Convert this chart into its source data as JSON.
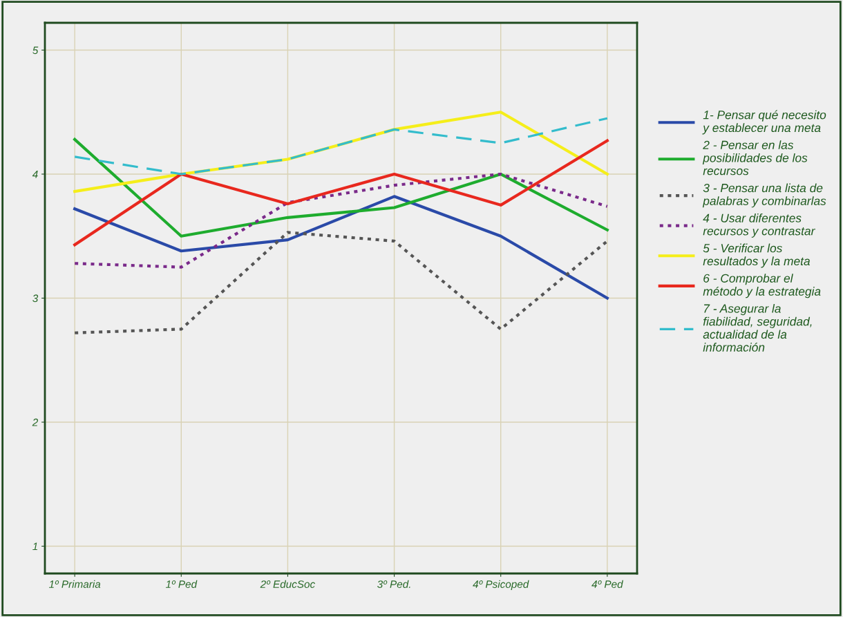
{
  "chart_data": {
    "type": "line",
    "categories": [
      "1º Primaria",
      "1º Ped",
      "2º EducSoc",
      "3º Ped.",
      "4º Psicoped",
      "4º Ped"
    ],
    "series": [
      {
        "name": "1- Pensar qué necesito\ny establecer una meta",
        "color": "#2a4aa8",
        "line_style": "solid",
        "values": [
          3.72,
          3.38,
          3.47,
          3.82,
          3.5,
          3.0
        ]
      },
      {
        "name": "2 - Pensar en las\nposibilidades de los\nrecursos",
        "color": "#1eac2e",
        "line_style": "solid",
        "values": [
          4.28,
          3.5,
          3.65,
          3.73,
          4.0,
          3.55
        ]
      },
      {
        "name": "3 - Pensar una lista de\npalabras y combinarlas",
        "color": "#555555",
        "line_style": "dotted",
        "values": [
          2.72,
          2.75,
          3.53,
          3.46,
          2.75,
          3.46
        ]
      },
      {
        "name": "4 - Usar diferentes\nrecursos y contrastar",
        "color": "#7a2a8a",
        "line_style": "dotted",
        "values": [
          3.28,
          3.25,
          3.77,
          3.91,
          4.0,
          3.74
        ]
      },
      {
        "name": "5 - Verificar los\nresultados y la meta",
        "color": "#f5ee1a",
        "line_style": "solid",
        "values": [
          3.86,
          4.0,
          4.12,
          4.36,
          4.5,
          4.0
        ]
      },
      {
        "name": "6 - Comprobar el\nmétodo y la estrategia",
        "color": "#e8281e",
        "line_style": "solid",
        "values": [
          3.43,
          4.0,
          3.76,
          4.0,
          3.75,
          4.27
        ]
      },
      {
        "name": "7 - Asegurar la\nfiabilidad, seguridad,\nactualidad de la\ninformación",
        "color": "#33bccc",
        "line_style": "dashed",
        "values": [
          4.14,
          4.0,
          4.12,
          4.36,
          4.25,
          4.45
        ]
      }
    ],
    "ylim": [
      0.78,
      5.22
    ],
    "yticks": [
      1,
      2,
      3,
      4,
      5
    ],
    "grid": true,
    "legend": "right",
    "marker": "none"
  }
}
